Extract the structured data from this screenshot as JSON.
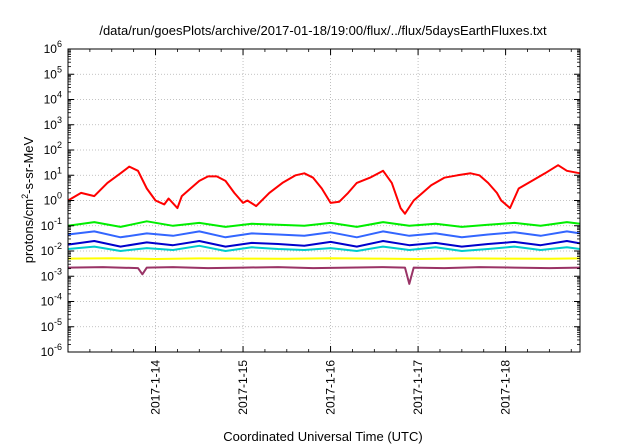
{
  "chart_data": {
    "type": "line",
    "title": "/data/run/goesPlots/archive/2017-01-18/19:00/flux/../flux/5daysEarthFluxes.txt",
    "xlabel": "Coordinated Universal Time (UTC)",
    "ylabel": {
      "base": "protons/cm",
      "sup": "2",
      "rest": "-s-sr-MeV"
    },
    "yscale": "log",
    "ylim_exponents": [
      -6,
      6
    ],
    "y_ticks": [
      {
        "base": "10",
        "exp": "6",
        "value_exp": 6
      },
      {
        "base": "10",
        "exp": "5",
        "value_exp": 5
      },
      {
        "base": "10",
        "exp": "4",
        "value_exp": 4
      },
      {
        "base": "10",
        "exp": "3",
        "value_exp": 3
      },
      {
        "base": "10",
        "exp": "2",
        "value_exp": 2
      },
      {
        "base": "10",
        "exp": "1",
        "value_exp": 1
      },
      {
        "base": "10",
        "exp": "0",
        "value_exp": 0
      },
      {
        "base": "10",
        "exp": "-1",
        "value_exp": -1
      },
      {
        "base": "10",
        "exp": "-2",
        "value_exp": -2
      },
      {
        "base": "10",
        "exp": "-3",
        "value_exp": -3
      },
      {
        "base": "10",
        "exp": "-4",
        "value_exp": -4
      },
      {
        "base": "10",
        "exp": "-5",
        "value_exp": -5
      },
      {
        "base": "10",
        "exp": "-6",
        "value_exp": -6
      }
    ],
    "x_range_days": [
      0,
      5.85
    ],
    "x_ticks": [
      {
        "label": "2017-1-14",
        "day": 1
      },
      {
        "label": "2017-1-15",
        "day": 2
      },
      {
        "label": "2017-1-16",
        "day": 3
      },
      {
        "label": "2017-1-17",
        "day": 4
      },
      {
        "label": "2017-1-18",
        "day": 5
      }
    ],
    "grid": true,
    "series": [
      {
        "color": "#ff0000",
        "x": [
          0.0,
          0.15,
          0.3,
          0.45,
          0.6,
          0.7,
          0.8,
          0.9,
          1.0,
          1.1,
          1.15,
          1.25,
          1.3,
          1.4,
          1.5,
          1.6,
          1.7,
          1.8,
          1.9,
          2.0,
          2.05,
          2.15,
          2.3,
          2.45,
          2.6,
          2.7,
          2.8,
          2.9,
          3.0,
          3.1,
          3.2,
          3.3,
          3.45,
          3.6,
          3.7,
          3.8,
          3.85,
          3.95,
          4.05,
          4.15,
          4.3,
          4.45,
          4.6,
          4.7,
          4.8,
          4.9,
          4.95,
          5.05,
          5.15,
          5.3,
          5.45,
          5.6,
          5.7,
          5.85
        ],
        "y": [
          1.0,
          2.0,
          1.5,
          5.0,
          12,
          22,
          15,
          3.0,
          1.0,
          0.7,
          1.2,
          0.5,
          1.5,
          3.0,
          6.0,
          9.0,
          9.0,
          6.0,
          2.0,
          0.8,
          1.0,
          0.6,
          2.0,
          5.0,
          10,
          12,
          8.0,
          3.0,
          0.8,
          0.9,
          2.0,
          5.0,
          8.0,
          15,
          5.0,
          0.5,
          0.3,
          1.0,
          2.0,
          4.0,
          8.0,
          10,
          12,
          10,
          5.0,
          2.0,
          1.0,
          0.5,
          3.0,
          6.0,
          12,
          25,
          15,
          12
        ]
      },
      {
        "color": "#00ee00",
        "x": [
          0.0,
          0.3,
          0.6,
          0.9,
          1.2,
          1.5,
          1.8,
          2.1,
          2.4,
          2.7,
          3.0,
          3.3,
          3.6,
          3.9,
          4.2,
          4.5,
          4.8,
          5.1,
          5.4,
          5.7,
          5.85
        ],
        "y": [
          0.1,
          0.14,
          0.09,
          0.15,
          0.1,
          0.13,
          0.09,
          0.12,
          0.11,
          0.1,
          0.13,
          0.09,
          0.14,
          0.1,
          0.12,
          0.09,
          0.11,
          0.13,
          0.1,
          0.14,
          0.12
        ]
      },
      {
        "color": "#00cccc",
        "x": [
          0.0,
          0.3,
          0.6,
          0.9,
          1.2,
          1.5,
          1.8,
          2.1,
          2.4,
          2.7,
          3.0,
          3.3,
          3.6,
          3.9,
          4.2,
          4.5,
          4.8,
          5.1,
          5.4,
          5.7,
          5.85
        ],
        "y": [
          0.012,
          0.015,
          0.01,
          0.013,
          0.011,
          0.016,
          0.01,
          0.014,
          0.012,
          0.011,
          0.013,
          0.01,
          0.015,
          0.011,
          0.014,
          0.01,
          0.012,
          0.015,
          0.011,
          0.014,
          0.012
        ]
      },
      {
        "color": "#3366ff",
        "x": [
          0.0,
          0.3,
          0.6,
          0.9,
          1.2,
          1.5,
          1.8,
          2.1,
          2.4,
          2.7,
          3.0,
          3.3,
          3.6,
          3.9,
          4.2,
          4.5,
          4.8,
          5.1,
          5.4,
          5.7,
          5.85
        ],
        "y": [
          0.045,
          0.06,
          0.035,
          0.05,
          0.04,
          0.06,
          0.035,
          0.05,
          0.045,
          0.04,
          0.055,
          0.035,
          0.06,
          0.04,
          0.05,
          0.035,
          0.045,
          0.055,
          0.04,
          0.06,
          0.05
        ]
      },
      {
        "color": "#0000cc",
        "x": [
          0.0,
          0.3,
          0.6,
          0.9,
          1.2,
          1.5,
          1.8,
          2.1,
          2.4,
          2.7,
          3.0,
          3.3,
          3.6,
          3.9,
          4.2,
          4.5,
          4.8,
          5.1,
          5.4,
          5.7,
          5.85
        ],
        "y": [
          0.018,
          0.025,
          0.015,
          0.022,
          0.017,
          0.025,
          0.015,
          0.021,
          0.019,
          0.016,
          0.023,
          0.015,
          0.025,
          0.017,
          0.021,
          0.015,
          0.019,
          0.023,
          0.017,
          0.025,
          0.02
        ]
      },
      {
        "color": "#ffff00",
        "x": [
          0.0,
          0.5,
          1.0,
          1.5,
          2.0,
          2.5,
          3.0,
          3.5,
          4.0,
          4.5,
          5.0,
          5.5,
          5.85
        ],
        "y": [
          0.005,
          0.0052,
          0.0048,
          0.0051,
          0.005,
          0.0049,
          0.0052,
          0.005,
          0.0048,
          0.0051,
          0.005,
          0.0049,
          0.0051
        ]
      },
      {
        "color": "#993366",
        "x": [
          0.0,
          0.4,
          0.8,
          0.85,
          0.9,
          1.2,
          1.6,
          2.0,
          2.4,
          2.8,
          3.2,
          3.6,
          3.85,
          3.9,
          3.95,
          4.3,
          4.7,
          5.1,
          5.5,
          5.85
        ],
        "y": [
          0.0022,
          0.0023,
          0.0021,
          0.0012,
          0.0022,
          0.0023,
          0.0021,
          0.0022,
          0.0023,
          0.0021,
          0.0022,
          0.0023,
          0.0022,
          0.0005,
          0.0022,
          0.0021,
          0.0023,
          0.0022,
          0.0021,
          0.0022
        ]
      }
    ]
  }
}
